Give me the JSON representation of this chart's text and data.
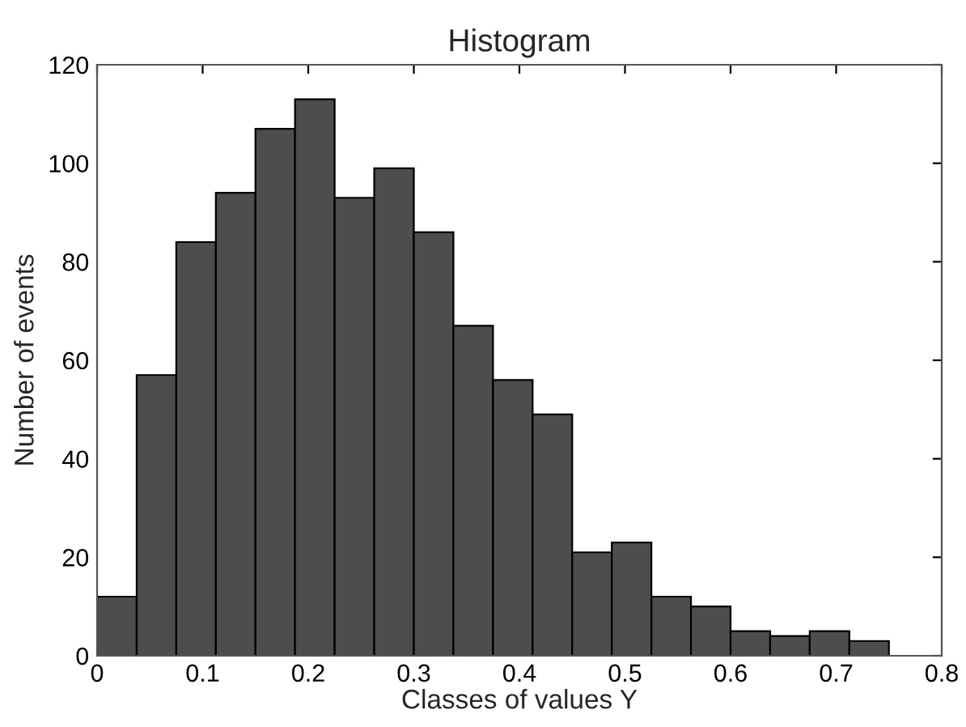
{
  "chart_data": {
    "type": "histogram",
    "title": "Histogram",
    "xlabel": "Classes of values Y",
    "ylabel": "Number of events",
    "bins": [
      0,
      0.0375,
      0.075,
      0.1125,
      0.15,
      0.1875,
      0.225,
      0.2625,
      0.3,
      0.3375,
      0.375,
      0.4125,
      0.45,
      0.4875,
      0.525,
      0.5625,
      0.6,
      0.6375,
      0.675,
      0.7125,
      0.75
    ],
    "values": [
      12,
      57,
      84,
      94,
      107,
      113,
      93,
      99,
      86,
      67,
      56,
      49,
      21,
      23,
      12,
      10,
      5,
      4,
      5,
      3
    ],
    "color": "#4d4d4d",
    "xlim": [
      0,
      0.8
    ],
    "ylim": [
      0,
      120
    ],
    "xticks": [
      0,
      0.1,
      0.2,
      0.3,
      0.4,
      0.5,
      0.6,
      0.7,
      0.8
    ],
    "yticks": [
      0,
      20,
      40,
      60,
      80,
      100,
      120
    ],
    "grid": false
  }
}
